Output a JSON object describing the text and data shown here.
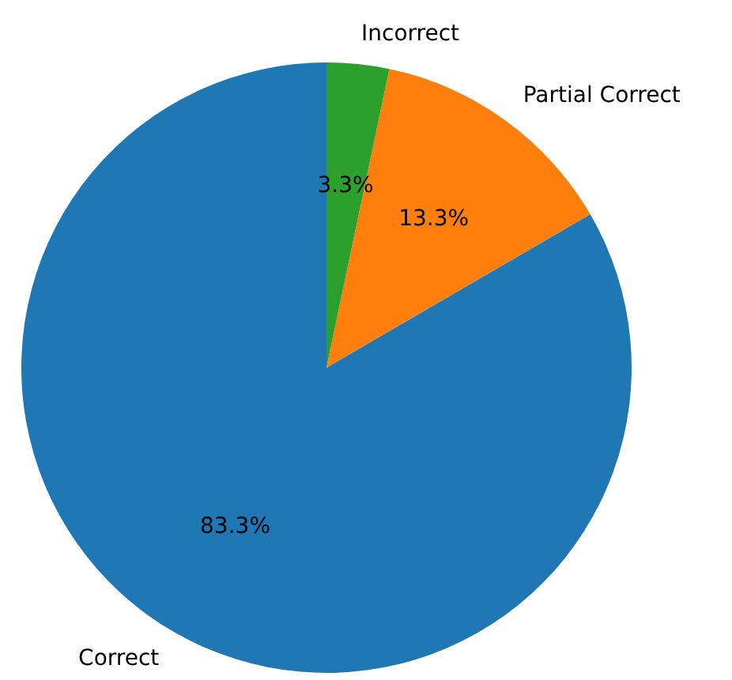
{
  "chart_data": {
    "type": "pie",
    "categories": [
      "Correct",
      "Partial Correct",
      "Incorrect"
    ],
    "values": [
      83.3,
      13.3,
      3.3
    ],
    "colors": [
      "#1f77b4",
      "#ff7f0e",
      "#2ca02c"
    ],
    "value_labels": [
      "83.3%",
      "13.3%",
      "3.3%"
    ]
  }
}
